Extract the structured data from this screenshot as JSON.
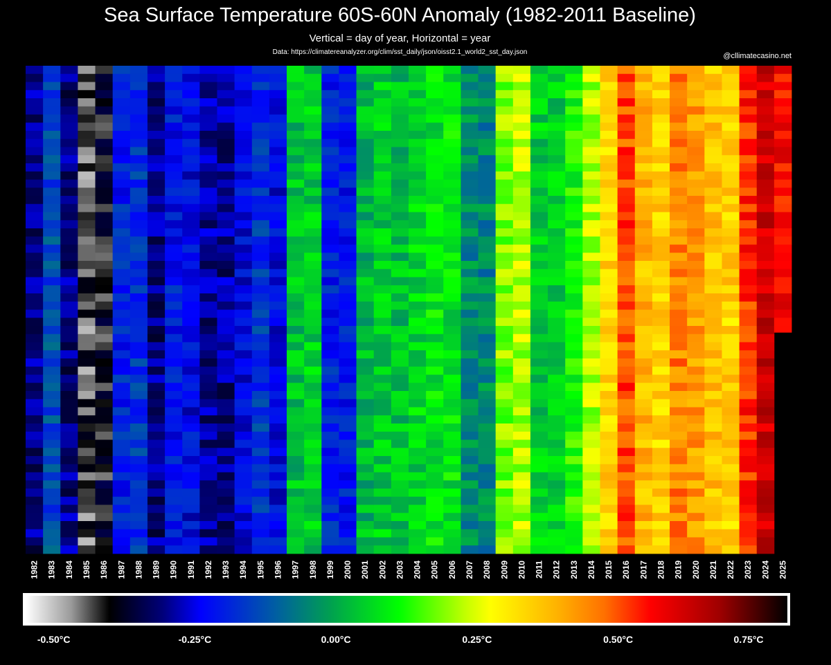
{
  "header": {
    "title": "Sea Surface Temperature 60S-60N Anomaly (1982-2011 Baseline)",
    "subtitle": "Vertical = day of year, Horizontal = year",
    "source": "Data: https://climatereanalyzer.org/clim/sst_daily/json/oisst2.1_world2_sst_day.json",
    "credit": "@cllimatecasino.net"
  },
  "chart_data": {
    "type": "heatmap",
    "title": "Sea Surface Temperature 60S-60N Anomaly (1982-2011 Baseline)",
    "xlabel": "year",
    "ylabel": "day of year",
    "x": [
      "1982",
      "1983",
      "1984",
      "1985",
      "1986",
      "1987",
      "1988",
      "1989",
      "1990",
      "1991",
      "1992",
      "1993",
      "1994",
      "1995",
      "1996",
      "1997",
      "1998",
      "1999",
      "2000",
      "2001",
      "2002",
      "2003",
      "2004",
      "2005",
      "2006",
      "2007",
      "2008",
      "2009",
      "2010",
      "2011",
      "2012",
      "2013",
      "2014",
      "2015",
      "2016",
      "2017",
      "2018",
      "2019",
      "2020",
      "2021",
      "2022",
      "2023",
      "2024",
      "2025"
    ],
    "y_range": [
      1,
      366
    ],
    "unit": "°C",
    "year_mean_anomaly": [
      -0.31,
      -0.14,
      -0.31,
      -0.44,
      -0.4,
      -0.2,
      -0.17,
      -0.31,
      -0.21,
      -0.23,
      -0.3,
      -0.3,
      -0.23,
      -0.17,
      -0.23,
      0.03,
      0.05,
      -0.2,
      -0.21,
      0.02,
      0.05,
      0.03,
      0.06,
      0.08,
      0.08,
      -0.04,
      -0.05,
      0.19,
      0.22,
      0.05,
      0.05,
      0.12,
      0.22,
      0.34,
      0.5,
      0.38,
      0.34,
      0.45,
      0.42,
      0.36,
      0.34,
      0.53,
      0.62,
      0.56
    ],
    "last_day_2025": 200,
    "colorbar": {
      "min": -0.55,
      "max": 0.8,
      "tick_labels": [
        "-0.50°C",
        "-0.25°C",
        "0.00°C",
        "0.25°C",
        "0.50°C",
        "0.75°C"
      ],
      "tick_values": [
        -0.5,
        -0.25,
        0.0,
        0.25,
        0.5,
        0.75
      ]
    },
    "colors": {
      "background": "#000000",
      "scale": [
        "#ffffff",
        "#9a9a9a",
        "#000000",
        "#00007a",
        "#0000ff",
        "#0060a0",
        "#00a050",
        "#00ff00",
        "#c8ff00",
        "#ffff00",
        "#ffb000",
        "#ff7000",
        "#ff0000",
        "#a00000",
        "#000000"
      ]
    }
  }
}
